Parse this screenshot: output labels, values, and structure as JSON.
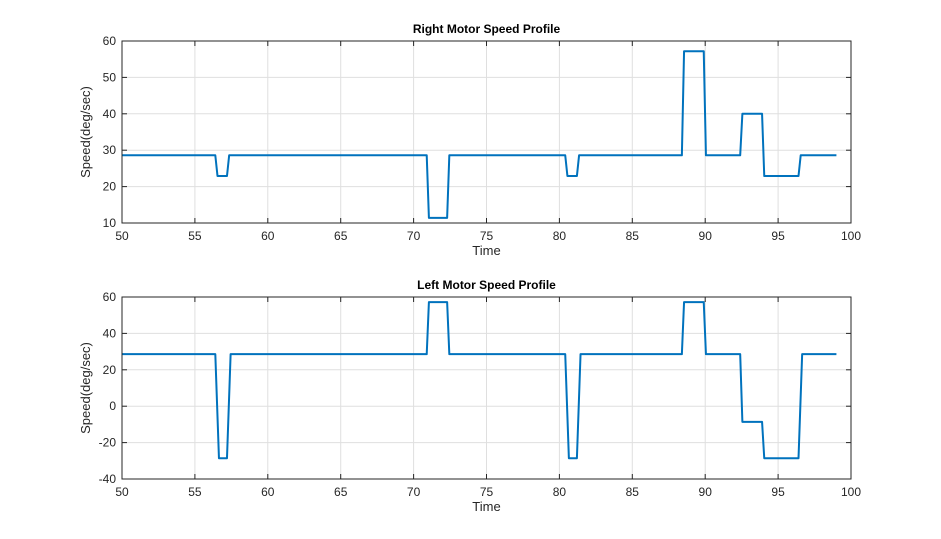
{
  "chart_data": [
    {
      "type": "line",
      "title": "Right Motor Speed Profile",
      "xlabel": "Time",
      "ylabel": "Speed(deg/sec)",
      "xlim": [
        50,
        100
      ],
      "ylim": [
        10,
        60
      ],
      "xticks": [
        50,
        55,
        60,
        65,
        70,
        75,
        80,
        85,
        90,
        95,
        100
      ],
      "yticks": [
        10,
        20,
        30,
        40,
        50,
        60
      ],
      "grid": true,
      "color": "#0072BD",
      "series": [
        {
          "x": [
            50,
            56.4,
            56.55,
            57.2,
            57.35,
            70.9,
            71.05,
            72.3,
            72.45,
            80.4,
            80.55,
            81.2,
            81.35,
            88.4,
            88.55,
            89.9,
            90.05,
            92.4,
            92.55,
            93.9,
            94.05,
            96.4,
            96.55,
            99
          ],
          "y": [
            28.6,
            28.6,
            22.9,
            22.9,
            28.6,
            28.6,
            11.4,
            11.4,
            28.6,
            28.6,
            22.9,
            22.9,
            28.6,
            28.6,
            57.2,
            57.2,
            28.6,
            28.6,
            40.0,
            40.0,
            22.9,
            22.9,
            28.6,
            28.6
          ]
        }
      ]
    },
    {
      "type": "line",
      "title": "Left Motor Speed Profile",
      "xlabel": "Time",
      "ylabel": "Speed(deg/sec)",
      "xlim": [
        50,
        100
      ],
      "ylim": [
        -40,
        60
      ],
      "xticks": [
        50,
        55,
        60,
        65,
        70,
        75,
        80,
        85,
        90,
        95,
        100
      ],
      "yticks": [
        -40,
        -20,
        0,
        20,
        40,
        60
      ],
      "grid": true,
      "color": "#0072BD",
      "series": [
        {
          "x": [
            50,
            56.4,
            56.65,
            57.2,
            57.45,
            70.9,
            71.05,
            72.3,
            72.45,
            80.4,
            80.65,
            81.2,
            81.45,
            88.4,
            88.55,
            89.9,
            90.05,
            92.4,
            92.55,
            93.9,
            94.05,
            96.4,
            96.65,
            99
          ],
          "y": [
            28.6,
            28.6,
            -28.6,
            -28.6,
            28.6,
            28.6,
            57.2,
            57.2,
            28.6,
            28.6,
            -28.6,
            -28.6,
            28.6,
            28.6,
            57.2,
            57.2,
            28.6,
            28.6,
            -8.6,
            -8.6,
            -28.6,
            -28.6,
            28.6,
            28.6
          ]
        }
      ]
    }
  ]
}
